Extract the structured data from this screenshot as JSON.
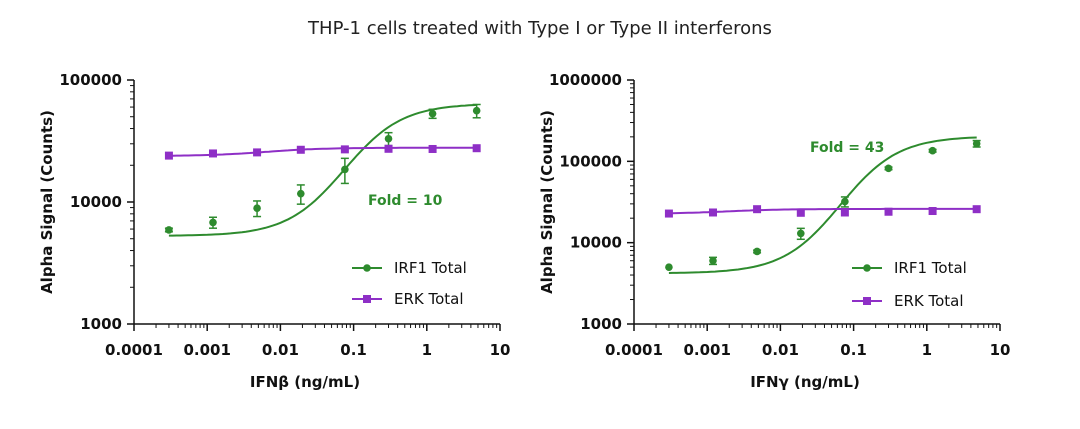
{
  "figure": {
    "title": "THP-1 cells treated with Type I or Type II interferons"
  },
  "colors": {
    "irf1": "#2e8b2e",
    "erk": "#8e2fc6",
    "axis": "#111111"
  },
  "chart_data": [
    {
      "type": "scatter",
      "title": "",
      "xlabel": "IFNβ (ng/mL)",
      "ylabel": "Alpha Signal (Counts)",
      "xscale": "log",
      "yscale": "log",
      "xlim": [
        0.0001,
        10
      ],
      "ylim": [
        1000,
        100000
      ],
      "x_ticks": [
        "0.0001",
        "0.001",
        "0.01",
        "0.1",
        "1",
        "10"
      ],
      "y_ticks": [
        "1000",
        "10000",
        "100000"
      ],
      "legend_position": "bottom-right",
      "annotation": "Fold = 10",
      "series": [
        {
          "name": "IRF1 Total",
          "marker": "circle",
          "color": "#2e8b2e",
          "fit": "sigmoid",
          "x": [
            0.0003,
            0.0012,
            0.0048,
            0.019,
            0.076,
            0.3,
            1.2,
            4.8
          ],
          "y": [
            5900,
            6800,
            8900,
            11700,
            18500,
            33000,
            53000,
            56000
          ],
          "err": [
            200,
            700,
            1300,
            2100,
            4300,
            4000,
            4500,
            7000
          ]
        },
        {
          "name": "ERK Total",
          "marker": "square",
          "color": "#8e2fc6",
          "fit": "sigmoid",
          "x": [
            0.0003,
            0.0012,
            0.0048,
            0.019,
            0.076,
            0.3,
            1.2,
            4.8
          ],
          "y": [
            24000,
            25000,
            25500,
            26800,
            27000,
            27300,
            27200,
            27600
          ],
          "err": [
            0,
            0,
            0,
            0,
            0,
            0,
            0,
            0
          ]
        }
      ]
    },
    {
      "type": "scatter",
      "title": "",
      "xlabel": "IFNγ (ng/mL)",
      "ylabel": "Alpha Signal (Counts)",
      "xscale": "log",
      "yscale": "log",
      "xlim": [
        0.0001,
        10
      ],
      "ylim": [
        1000,
        1000000
      ],
      "x_ticks": [
        "0.0001",
        "0.001",
        "0.01",
        "0.1",
        "1",
        "10"
      ],
      "y_ticks": [
        "1000",
        "10000",
        "100000",
        "1000000"
      ],
      "legend_position": "bottom-right",
      "annotation": "Fold = 43",
      "series": [
        {
          "name": "IRF1 Total",
          "marker": "circle",
          "color": "#2e8b2e",
          "fit": "sigmoid",
          "x": [
            0.0003,
            0.0012,
            0.0048,
            0.019,
            0.076,
            0.3,
            1.2,
            4.8
          ],
          "y": [
            5000,
            6000,
            7800,
            13000,
            32000,
            82000,
            135000,
            165000
          ],
          "err": [
            0,
            600,
            300,
            2000,
            4500,
            3000,
            5000,
            15000
          ]
        },
        {
          "name": "ERK Total",
          "marker": "square",
          "color": "#8e2fc6",
          "fit": "sigmoid",
          "x": [
            0.0003,
            0.0012,
            0.0048,
            0.019,
            0.076,
            0.3,
            1.2,
            4.8
          ],
          "y": [
            22800,
            23500,
            25800,
            23300,
            23500,
            24000,
            24500,
            25800
          ],
          "err": [
            0,
            0,
            0,
            0,
            0,
            0,
            0,
            0
          ]
        }
      ]
    }
  ]
}
